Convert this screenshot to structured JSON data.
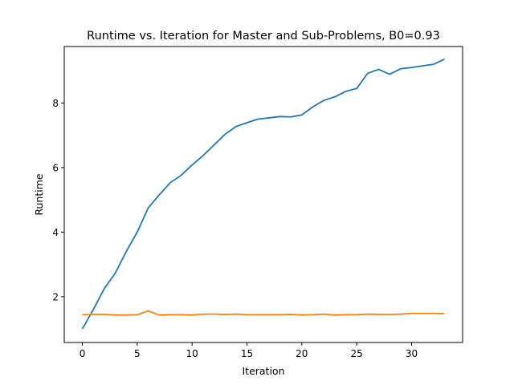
{
  "chart_data": {
    "type": "line",
    "title": "Runtime vs. Iteration for Master and Sub-Problems, B0=0.93",
    "xlabel": "Iteration",
    "ylabel": "Runtime",
    "xlim": [
      -1.65,
      34.65
    ],
    "ylim": [
      0.58,
      9.75
    ],
    "xticks": [
      0,
      5,
      10,
      15,
      20,
      25,
      30
    ],
    "yticks": [
      2,
      4,
      6,
      8
    ],
    "grid": false,
    "legend": "none",
    "series": [
      {
        "color": "#1f77b4",
        "x": [
          0,
          1,
          2,
          3,
          4,
          5,
          6,
          7,
          8,
          9,
          10,
          11,
          12,
          13,
          14,
          15,
          16,
          17,
          18,
          19,
          20,
          21,
          22,
          23,
          24,
          25,
          26,
          27,
          28,
          29,
          30,
          31,
          32,
          33
        ],
        "y": [
          1.0,
          1.6,
          2.25,
          2.73,
          3.4,
          4.0,
          4.75,
          5.15,
          5.53,
          5.76,
          6.08,
          6.37,
          6.7,
          7.03,
          7.27,
          7.39,
          7.5,
          7.54,
          7.58,
          7.57,
          7.63,
          7.88,
          8.08,
          8.19,
          8.36,
          8.45,
          8.92,
          9.04,
          8.89,
          9.06,
          9.1,
          9.15,
          9.2,
          9.36
        ]
      },
      {
        "color": "#ff7f0e",
        "x": [
          0,
          1,
          2,
          3,
          4,
          5,
          6,
          7,
          8,
          9,
          10,
          11,
          12,
          13,
          14,
          15,
          16,
          17,
          18,
          19,
          20,
          21,
          22,
          23,
          24,
          25,
          26,
          27,
          28,
          29,
          30,
          31,
          32,
          33
        ],
        "y": [
          1.44,
          1.45,
          1.45,
          1.43,
          1.43,
          1.44,
          1.56,
          1.43,
          1.44,
          1.44,
          1.43,
          1.46,
          1.46,
          1.45,
          1.46,
          1.44,
          1.44,
          1.44,
          1.44,
          1.45,
          1.43,
          1.44,
          1.46,
          1.43,
          1.44,
          1.44,
          1.46,
          1.45,
          1.45,
          1.46,
          1.48,
          1.48,
          1.48,
          1.47
        ]
      }
    ]
  }
}
